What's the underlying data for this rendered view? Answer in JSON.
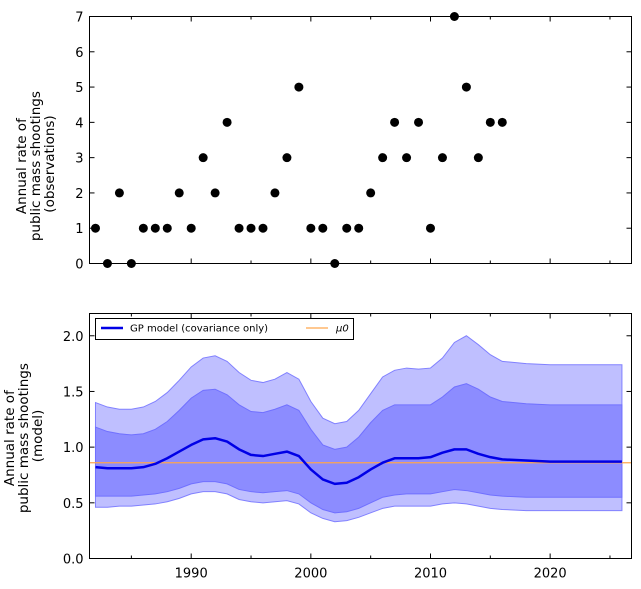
{
  "chart_data": [
    {
      "type": "scatter",
      "ylabel": [
        "Annual rate of",
        "public mass shootings",
        "(observations)"
      ],
      "xlim": [
        1981.5,
        2026.8
      ],
      "ylim": [
        0,
        7
      ],
      "yticks": [
        0,
        1,
        2,
        3,
        4,
        5,
        6,
        7
      ],
      "xtick_labels_shown": false,
      "marker_color": "#000000",
      "series": [
        {
          "x": [
            1982,
            1983,
            1984,
            1985,
            1986,
            1987,
            1988,
            1989,
            1990,
            1991,
            1992,
            1993,
            1994,
            1995,
            1996,
            1997,
            1998,
            1999,
            2000,
            2001,
            2002,
            2003,
            2004,
            2005,
            2006,
            2007,
            2008,
            2009,
            2010,
            2011,
            2012,
            2013,
            2014,
            2015,
            2016
          ],
          "y": [
            1,
            0,
            2,
            0,
            1,
            1,
            1,
            2,
            1,
            3,
            2,
            4,
            1,
            1,
            1,
            2,
            3,
            5,
            1,
            1,
            0,
            1,
            1,
            2,
            3,
            4,
            3,
            4,
            1,
            3,
            7,
            5,
            3,
            4,
            4
          ]
        }
      ]
    },
    {
      "type": "line",
      "ylabel": [
        "Annual rate of",
        "public mass shootings",
        "(model)"
      ],
      "xlim": [
        1981.5,
        2026.8
      ],
      "ylim": [
        0,
        2.2
      ],
      "yticks": [
        0.0,
        0.5,
        1.0,
        1.5,
        2.0
      ],
      "ytick_labels": [
        "0.0",
        "0.5",
        "1.0",
        "1.5",
        "2.0"
      ],
      "xticks": [
        1990,
        2000,
        2010,
        2020
      ],
      "xtick_labels": [
        "1990",
        "2000",
        "2010",
        "2020"
      ],
      "legend": {
        "placement": "upper-left",
        "ncol": 2
      },
      "colors": {
        "mean": "#0000e6",
        "band_inner": "#8c8cff",
        "band_outer": "#bfbfff",
        "band_edge": "#8080ff",
        "mu0": "#ffa64d"
      },
      "series": [
        {
          "name": "GP model (covariance only)",
          "x": [
            1982,
            1983,
            1984,
            1985,
            1986,
            1987,
            1988,
            1989,
            1990,
            1991,
            1992,
            1993,
            1994,
            1995,
            1996,
            1997,
            1998,
            1999,
            2000,
            2001,
            2002,
            2003,
            2004,
            2005,
            2006,
            2007,
            2008,
            2009,
            2010,
            2011,
            2012,
            2013,
            2014,
            2015,
            2016,
            2018,
            2020,
            2022,
            2024,
            2026
          ],
          "y": [
            0.82,
            0.81,
            0.81,
            0.81,
            0.82,
            0.85,
            0.9,
            0.96,
            1.02,
            1.07,
            1.08,
            1.05,
            0.98,
            0.93,
            0.92,
            0.94,
            0.96,
            0.92,
            0.8,
            0.71,
            0.67,
            0.68,
            0.73,
            0.8,
            0.86,
            0.9,
            0.9,
            0.9,
            0.91,
            0.95,
            0.98,
            0.98,
            0.94,
            0.91,
            0.89,
            0.88,
            0.87,
            0.87,
            0.87,
            0.87
          ],
          "inner_band": {
            "lower": [
              0.56,
              0.56,
              0.56,
              0.56,
              0.57,
              0.58,
              0.6,
              0.63,
              0.67,
              0.69,
              0.69,
              0.67,
              0.62,
              0.6,
              0.59,
              0.6,
              0.61,
              0.58,
              0.5,
              0.44,
              0.41,
              0.42,
              0.45,
              0.5,
              0.55,
              0.57,
              0.58,
              0.58,
              0.58,
              0.6,
              0.62,
              0.61,
              0.59,
              0.57,
              0.56,
              0.55,
              0.55,
              0.55,
              0.55,
              0.55
            ],
            "upper": [
              1.18,
              1.14,
              1.12,
              1.11,
              1.12,
              1.16,
              1.23,
              1.33,
              1.44,
              1.51,
              1.52,
              1.47,
              1.38,
              1.32,
              1.31,
              1.34,
              1.38,
              1.33,
              1.16,
              1.02,
              0.98,
              1.0,
              1.09,
              1.22,
              1.33,
              1.38,
              1.38,
              1.38,
              1.38,
              1.45,
              1.54,
              1.57,
              1.52,
              1.45,
              1.41,
              1.39,
              1.38,
              1.38,
              1.38,
              1.38
            ]
          },
          "outer_band": {
            "lower": [
              0.46,
              0.46,
              0.47,
              0.47,
              0.48,
              0.49,
              0.51,
              0.54,
              0.58,
              0.6,
              0.6,
              0.58,
              0.53,
              0.51,
              0.5,
              0.51,
              0.52,
              0.49,
              0.41,
              0.36,
              0.33,
              0.34,
              0.37,
              0.41,
              0.45,
              0.47,
              0.47,
              0.47,
              0.47,
              0.49,
              0.5,
              0.49,
              0.47,
              0.45,
              0.44,
              0.43,
              0.43,
              0.43,
              0.43,
              0.43
            ],
            "upper": [
              1.4,
              1.36,
              1.34,
              1.34,
              1.36,
              1.41,
              1.49,
              1.6,
              1.72,
              1.8,
              1.82,
              1.77,
              1.67,
              1.6,
              1.58,
              1.61,
              1.67,
              1.61,
              1.41,
              1.26,
              1.21,
              1.23,
              1.33,
              1.48,
              1.63,
              1.69,
              1.71,
              1.7,
              1.71,
              1.8,
              1.94,
              2.0,
              1.92,
              1.83,
              1.77,
              1.75,
              1.74,
              1.74,
              1.74,
              1.74
            ]
          }
        },
        {
          "name": "μ0",
          "y_constant": 0.86
        }
      ]
    }
  ]
}
